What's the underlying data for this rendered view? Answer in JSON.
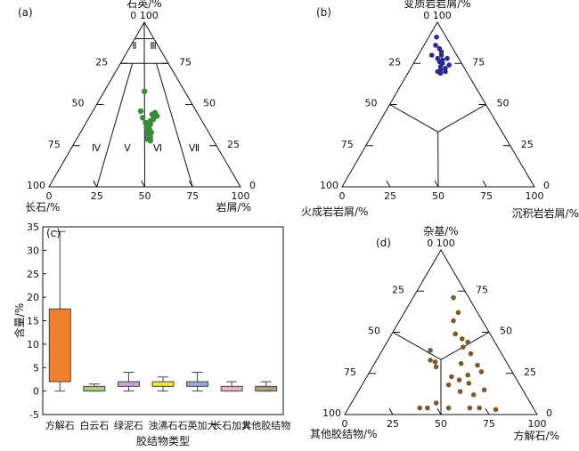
{
  "chart_data": [
    {
      "panel": "(a)",
      "type": "ternary",
      "apex_top": "石英/%",
      "apex_left": "长石/%",
      "apex_right": "岩屑/%",
      "axis_ticks": [
        "0",
        "25",
        "50",
        "75",
        "100"
      ],
      "field_labels": [
        "Ⅰ",
        "Ⅱ",
        "Ⅲ",
        "Ⅳ",
        "Ⅴ",
        "Ⅵ",
        "Ⅶ"
      ],
      "marker_color": "#3a8a3a",
      "points_bary": [
        [
          0.58,
          0.21,
          0.21
        ],
        [
          0.46,
          0.29,
          0.25
        ],
        [
          0.42,
          0.3,
          0.28
        ],
        [
          0.44,
          0.24,
          0.32
        ],
        [
          0.45,
          0.22,
          0.33
        ],
        [
          0.43,
          0.22,
          0.35
        ],
        [
          0.41,
          0.25,
          0.34
        ],
        [
          0.4,
          0.27,
          0.33
        ],
        [
          0.39,
          0.3,
          0.31
        ],
        [
          0.38,
          0.28,
          0.34
        ],
        [
          0.37,
          0.3,
          0.33
        ],
        [
          0.36,
          0.31,
          0.33
        ],
        [
          0.35,
          0.3,
          0.35
        ],
        [
          0.34,
          0.31,
          0.35
        ],
        [
          0.33,
          0.32,
          0.35
        ],
        [
          0.33,
          0.3,
          0.37
        ],
        [
          0.31,
          0.33,
          0.36
        ],
        [
          0.3,
          0.32,
          0.38
        ],
        [
          0.29,
          0.34,
          0.37
        ],
        [
          0.28,
          0.33,
          0.39
        ]
      ]
    },
    {
      "panel": "(b)",
      "type": "ternary",
      "apex_top": "变质岩岩屑/%",
      "apex_left": "火成岩岩屑/%",
      "apex_right": "沉积岩岩屑/%",
      "axis_ticks": [
        "0",
        "25",
        "50",
        "75",
        "100"
      ],
      "marker_color": "#2b2b8c",
      "points_bary": [
        [
          0.91,
          0.05,
          0.04
        ],
        [
          0.86,
          0.08,
          0.06
        ],
        [
          0.84,
          0.07,
          0.09
        ],
        [
          0.82,
          0.07,
          0.11
        ],
        [
          0.8,
          0.08,
          0.12
        ],
        [
          0.78,
          0.06,
          0.16
        ],
        [
          0.78,
          0.11,
          0.11
        ],
        [
          0.77,
          0.09,
          0.14
        ],
        [
          0.76,
          0.11,
          0.13
        ],
        [
          0.75,
          0.1,
          0.15
        ],
        [
          0.74,
          0.07,
          0.19
        ],
        [
          0.73,
          0.12,
          0.15
        ],
        [
          0.72,
          0.1,
          0.18
        ],
        [
          0.71,
          0.13,
          0.16
        ],
        [
          0.7,
          0.11,
          0.19
        ],
        [
          0.7,
          0.15,
          0.15
        ],
        [
          0.69,
          0.14,
          0.17
        ],
        [
          0.8,
          0.13,
          0.07
        ]
      ]
    },
    {
      "panel": "(c)",
      "type": "boxplot",
      "ylabel": "含量/%",
      "xlabel": "胶结物类型",
      "ylim": [
        -5,
        35
      ],
      "yticks": [
        "-5",
        "0",
        "5",
        "10",
        "15",
        "20",
        "25",
        "30",
        "35"
      ],
      "categories": [
        "方解石",
        "白云石",
        "绿泥石",
        "浊沸石",
        "石英加大",
        "长石加大",
        "其他胶结物"
      ],
      "colors": [
        "#f07f30",
        "#a6cf82",
        "#c8a6d6",
        "#f2e23a",
        "#9aa8d8",
        "#eab0c4",
        "#a89f84"
      ],
      "boxes": [
        {
          "min": 0,
          "q1": 2,
          "q3": 17.5,
          "max": 34
        },
        {
          "min": 0,
          "q1": 0,
          "q3": 1,
          "max": 1.5
        },
        {
          "min": 0,
          "q1": 1,
          "q3": 2,
          "max": 4
        },
        {
          "min": 0,
          "q1": 1,
          "q3": 2,
          "max": 3
        },
        {
          "min": 0,
          "q1": 1,
          "q3": 2,
          "max": 4
        },
        {
          "min": 0,
          "q1": 0,
          "q3": 1,
          "max": 2
        },
        {
          "min": 0,
          "q1": 0,
          "q3": 1,
          "max": 2
        }
      ]
    },
    {
      "panel": "(d)",
      "type": "ternary",
      "apex_top": "杂基/%",
      "apex_left": "其他胶结物/%",
      "apex_right": "方解石/%",
      "axis_ticks": [
        "0",
        "25",
        "50",
        "75",
        "100"
      ],
      "marker_color": "#7a5a2e",
      "points_bary": [
        [
          0.71,
          0.08,
          0.21
        ],
        [
          0.62,
          0.1,
          0.28
        ],
        [
          0.57,
          0.15,
          0.28
        ],
        [
          0.49,
          0.18,
          0.33
        ],
        [
          0.46,
          0.16,
          0.38
        ],
        [
          0.44,
          0.14,
          0.42
        ],
        [
          0.41,
          0.18,
          0.41
        ],
        [
          0.39,
          0.36,
          0.25
        ],
        [
          0.37,
          0.16,
          0.47
        ],
        [
          0.33,
          0.39,
          0.28
        ],
        [
          0.32,
          0.37,
          0.31
        ],
        [
          0.29,
          0.38,
          0.33
        ],
        [
          0.31,
          0.24,
          0.45
        ],
        [
          0.3,
          0.16,
          0.54
        ],
        [
          0.26,
          0.16,
          0.58
        ],
        [
          0.24,
          0.24,
          0.52
        ],
        [
          0.23,
          0.33,
          0.44
        ],
        [
          0.21,
          0.3,
          0.49
        ],
        [
          0.18,
          0.37,
          0.45
        ],
        [
          0.19,
          0.26,
          0.55
        ],
        [
          0.15,
          0.2,
          0.65
        ],
        [
          0.14,
          0.33,
          0.53
        ],
        [
          0.12,
          0.27,
          0.61
        ],
        [
          0.07,
          0.49,
          0.44
        ],
        [
          0.04,
          0.59,
          0.37
        ],
        [
          0.04,
          0.55,
          0.41
        ],
        [
          0.04,
          0.44,
          0.52
        ],
        [
          0.04,
          0.33,
          0.63
        ],
        [
          0.04,
          0.28,
          0.68
        ],
        [
          0.03,
          0.2,
          0.77
        ]
      ]
    }
  ]
}
